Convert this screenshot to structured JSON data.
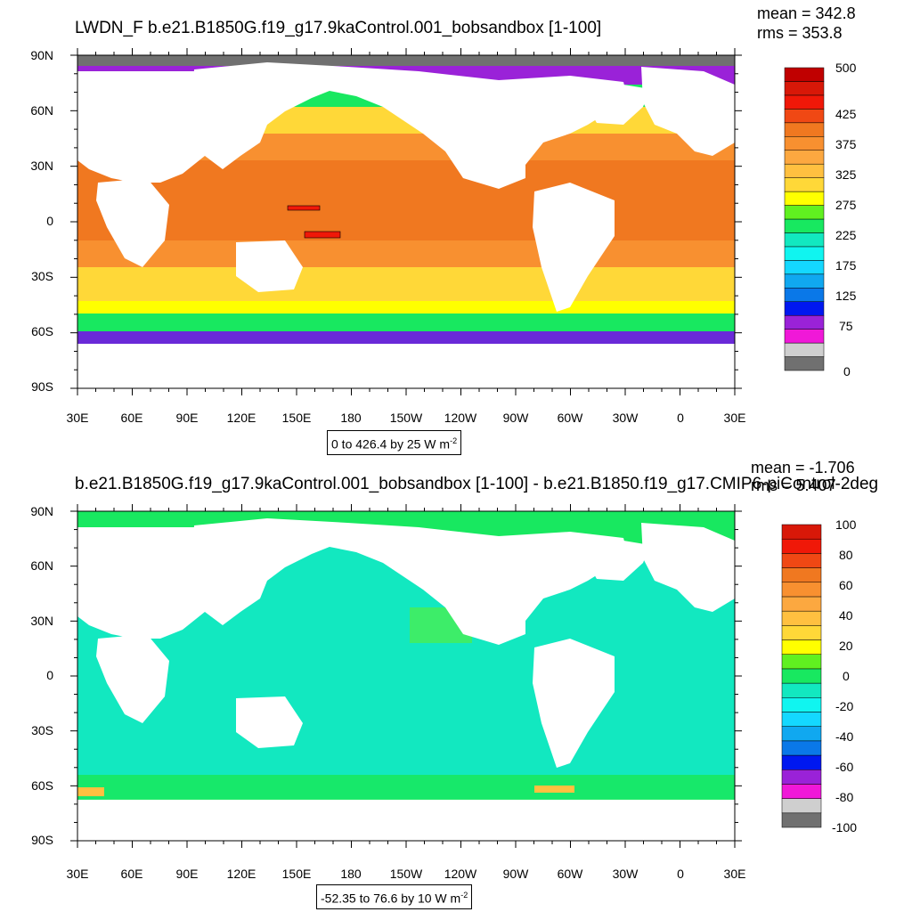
{
  "top_panel": {
    "title": "LWDN_F  b.e21.B1850G.f19_g17.9kaControl.001_bobsandbox [1-100]",
    "mean_text": "mean = 342.8",
    "rms_text": "rms = 353.8",
    "range_text": "0 to 426.4 by 25  W m",
    "range_exp": "-2",
    "colorbar": {
      "colors": [
        "#707070",
        "#cfcfcf",
        "#f018d8",
        "#9a22d8",
        "#0018f0",
        "#0a78e8",
        "#10a8f0",
        "#14d8ff",
        "#10f5f0",
        "#12e8c0",
        "#18e860",
        "#60f020",
        "#ffff00",
        "#ffd838",
        "#ffc040",
        "#fca840",
        "#f89030",
        "#f07820",
        "#f04814",
        "#f01808",
        "#d81808",
        "#c00000"
      ],
      "labels": [
        "0",
        "75",
        "125",
        "175",
        "225",
        "275",
        "325",
        "375",
        "425",
        "500"
      ]
    }
  },
  "bottom_panel": {
    "title": "b.e21.B1850G.f19_g17.9kaControl.001_bobsandbox [1-100] - b.e21.B1850.f19_g17.CMIP6-piControl-2deg",
    "mean_text": "mean = -1.706",
    "rms_text": "rms = 5.407",
    "range_text": "-52.35 to 76.6 by 10  W m",
    "range_exp": "-2",
    "colorbar": {
      "colors": [
        "#707070",
        "#cfcfcf",
        "#f018d8",
        "#9a22d8",
        "#0018f0",
        "#0a78e8",
        "#10a8f0",
        "#14d8ff",
        "#10f5f0",
        "#12e8c0",
        "#18e860",
        "#60f020",
        "#ffff00",
        "#ffd838",
        "#ffc040",
        "#fca840",
        "#f89030",
        "#f07820",
        "#f04814",
        "#f01808",
        "#d81808"
      ],
      "labels": [
        "100",
        "80",
        "60",
        "40",
        "20",
        "0",
        "-20",
        "-40",
        "-60",
        "-80",
        "-100"
      ]
    }
  },
  "axes": {
    "lon_labels": [
      "30E",
      "60E",
      "90E",
      "120E",
      "150E",
      "180",
      "150W",
      "120W",
      "90W",
      "60W",
      "30W",
      "0",
      "30E"
    ],
    "lat_labels": [
      "90N",
      "60N",
      "30N",
      "0",
      "30S",
      "60S",
      "90S"
    ]
  },
  "colors": {
    "land": "#ffffff",
    "ice": "#707070",
    "frame": "#000000"
  }
}
